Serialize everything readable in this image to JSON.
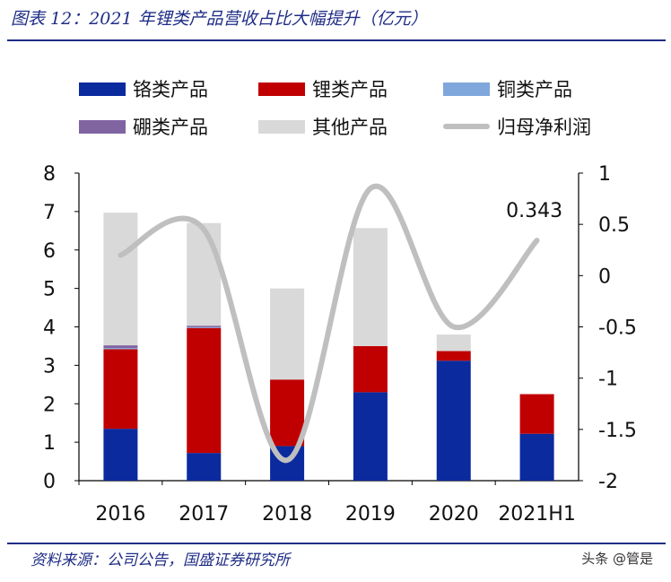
{
  "header": {
    "title": "图表 12：2021 年锂类产品营收占比大幅提升（亿元）"
  },
  "footer": {
    "source": "资料来源：公司公告，国盛证券研究所",
    "watermark": "头条 @管是"
  },
  "chart_data": {
    "type": "bar",
    "stacked": true,
    "categories": [
      "2016",
      "2017",
      "2018",
      "2019",
      "2020",
      "2021H1"
    ],
    "series": [
      {
        "name": "铬类产品",
        "color": "#0a2a9e",
        "values": [
          1.35,
          0.72,
          0.9,
          2.3,
          3.12,
          1.22
        ]
      },
      {
        "name": "锂类产品",
        "color": "#c00000",
        "values": [
          2.07,
          3.25,
          1.73,
          1.2,
          0.25,
          1.03
        ]
      },
      {
        "name": "铜类产品",
        "color": "#7fa7dc",
        "values": [
          0.03,
          0.02,
          0.0,
          0.0,
          0.0,
          0.0
        ]
      },
      {
        "name": "硼类产品",
        "color": "#8064a2",
        "values": [
          0.07,
          0.04,
          0.0,
          0.0,
          0.0,
          0.0
        ]
      },
      {
        "name": "其他产品",
        "color": "#d9d9d9",
        "values": [
          3.45,
          2.67,
          2.37,
          3.07,
          0.43,
          0.0
        ]
      }
    ],
    "line_series": {
      "name": "归母净利润",
      "color": "#bfbfbf",
      "values": [
        0.2,
        0.45,
        -1.8,
        0.85,
        -0.5,
        0.343
      ]
    },
    "data_labels": [
      {
        "text": "0.343"
      }
    ],
    "y_left": {
      "min": 0,
      "max": 8,
      "ticks": [
        "0",
        "1",
        "2",
        "3",
        "4",
        "5",
        "6",
        "7",
        "8"
      ]
    },
    "y_right": {
      "min": -2,
      "max": 1,
      "ticks": [
        "-2",
        "-1.5",
        "-1",
        "-0.5",
        "0",
        "0.5",
        "1"
      ]
    },
    "legend_position": "top",
    "grid": false
  }
}
